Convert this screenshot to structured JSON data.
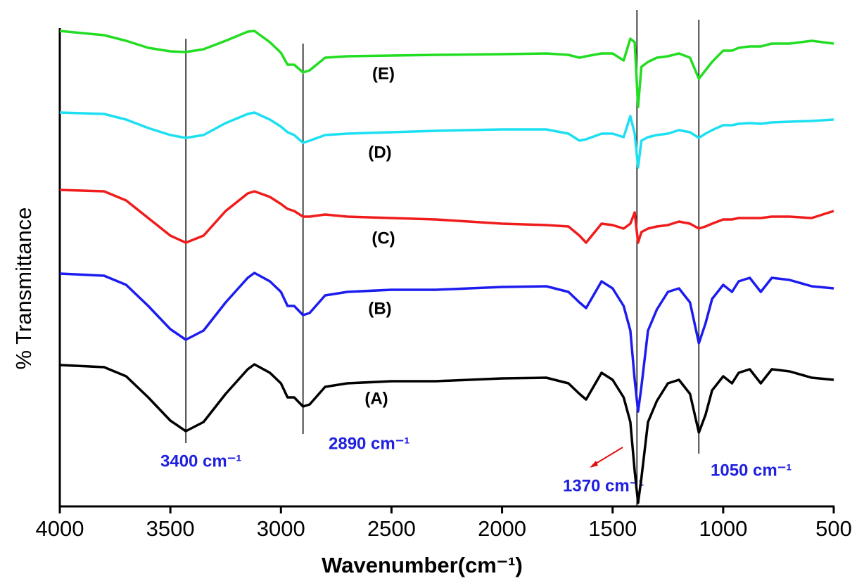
{
  "chart_data": {
    "type": "line",
    "xlabel": "Wavenumber(cm⁻¹)",
    "ylabel": "% Transmittance",
    "x": [
      4000,
      3800,
      3700,
      3600,
      3500,
      3430,
      3350,
      3250,
      3150,
      3120,
      3050,
      3000,
      2970,
      2940,
      2900,
      2870,
      2800,
      2700,
      2500,
      2300,
      2000,
      1800,
      1700,
      1650,
      1620,
      1550,
      1500,
      1450,
      1420,
      1400,
      1385,
      1370,
      1340,
      1300,
      1250,
      1200,
      1150,
      1110,
      1080,
      1050,
      1000,
      960,
      930,
      880,
      830,
      780,
      700,
      600,
      500
    ],
    "series": [
      {
        "name": "(A)",
        "color": "#000000",
        "values": [
          201,
          198,
          185,
          155,
          122,
          107,
          120,
          160,
          195,
          202,
          190,
          175,
          155,
          155,
          142,
          145,
          170,
          175,
          178,
          178,
          182,
          183,
          175,
          160,
          152,
          190,
          180,
          155,
          120,
          50,
          5,
          40,
          120,
          150,
          175,
          180,
          160,
          105,
          130,
          165,
          185,
          175,
          190,
          195,
          175,
          195,
          192,
          183,
          180
        ]
      },
      {
        "name": "(B)",
        "color": "#1c1cf0",
        "values": [
          331,
          328,
          315,
          285,
          252,
          237,
          250,
          290,
          325,
          332,
          320,
          305,
          285,
          285,
          272,
          275,
          300,
          305,
          308,
          308,
          312,
          313,
          305,
          290,
          282,
          320,
          310,
          285,
          250,
          180,
          135,
          170,
          250,
          280,
          305,
          310,
          290,
          232,
          260,
          295,
          315,
          305,
          320,
          325,
          305,
          325,
          322,
          313,
          310
        ]
      },
      {
        "name": "(C)",
        "color": "#f01c1c",
        "values": [
          450,
          448,
          435,
          410,
          385,
          375,
          385,
          420,
          445,
          448,
          440,
          430,
          423,
          420,
          412,
          412,
          415,
          412,
          410,
          408,
          402,
          400,
          398,
          385,
          375,
          402,
          400,
          395,
          402,
          418,
          375,
          390,
          395,
          398,
          400,
          405,
          402,
          395,
          398,
          402,
          408,
          408,
          410,
          410,
          410,
          412,
          412,
          410,
          420
        ]
      },
      {
        "name": "(D)",
        "color": "#1ce0f2",
        "values": [
          560,
          558,
          550,
          538,
          528,
          524,
          528,
          545,
          558,
          560,
          550,
          540,
          532,
          528,
          517,
          520,
          528,
          530,
          532,
          534,
          536,
          536,
          530,
          520,
          522,
          530,
          530,
          525,
          555,
          530,
          482,
          520,
          525,
          528,
          530,
          535,
          532,
          524,
          530,
          535,
          542,
          542,
          544,
          545,
          544,
          546,
          547,
          548,
          550
        ]
      },
      {
        "name": "(E)",
        "color": "#22dd22",
        "values": [
          676,
          670,
          662,
          652,
          647,
          646,
          650,
          662,
          675,
          676,
          660,
          645,
          628,
          628,
          617,
          620,
          638,
          640,
          641,
          642,
          643,
          644,
          642,
          638,
          640,
          644,
          644,
          634,
          665,
          660,
          568,
          625,
          632,
          638,
          640,
          644,
          638,
          608,
          620,
          632,
          648,
          648,
          652,
          654,
          654,
          658,
          658,
          662,
          658
        ]
      }
    ],
    "annotations": [
      {
        "x": 3430,
        "label": "3400 cm⁻¹"
      },
      {
        "x": 2900,
        "label": "2890 cm⁻¹"
      },
      {
        "x": 1390,
        "label": "1370 cm⁻¹"
      },
      {
        "x": 1110,
        "label": "1050 cm⁻¹"
      }
    ],
    "xlim": [
      4000,
      500
    ],
    "xticks": [
      4000,
      3500,
      3000,
      2500,
      2000,
      1500,
      1000,
      500
    ],
    "ylim": [
      0,
      690
    ]
  }
}
